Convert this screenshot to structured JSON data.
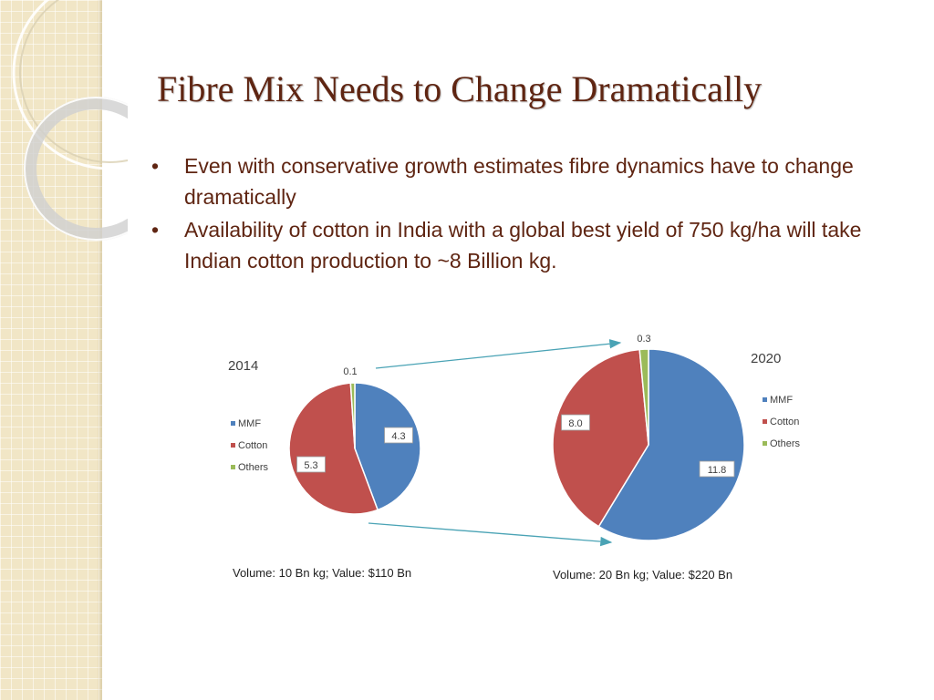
{
  "title": "Fibre Mix Needs to Change Dramatically",
  "bullets": [
    "Even with conservative growth estimates fibre dynamics have to change dramatically",
    "Availability of cotton in India with a global best yield of 750 kg/ha will take Indian cotton production to ~8 Billion kg."
  ],
  "bullet_glyph": "•",
  "colors": {
    "title": "#5f2512",
    "mmf": "#4f81bd",
    "cotton": "#c0504d",
    "others": "#9bbb59",
    "arrow": "#4aa3b5"
  },
  "chart_data": [
    {
      "type": "pie",
      "title": "2014",
      "categories": [
        "MMF",
        "Cotton",
        "Others"
      ],
      "values": [
        4.3,
        5.3,
        0.1
      ],
      "data_labels": [
        "4.3",
        "5.3",
        "0.1"
      ],
      "legend": [
        "MMF",
        "Cotton",
        "Others"
      ],
      "legend_position": "left",
      "caption": "Volume: 10 Bn kg; Value: $110 Bn"
    },
    {
      "type": "pie",
      "title": "2020",
      "categories": [
        "MMF",
        "Cotton",
        "Others"
      ],
      "values": [
        11.8,
        8.0,
        0.3
      ],
      "data_labels": [
        "11.8",
        "8.0",
        "0.3"
      ],
      "legend": [
        "MMF",
        "Cotton",
        "Others"
      ],
      "legend_position": "right",
      "caption": "Volume: 20 Bn kg; Value: $220 Bn"
    }
  ]
}
